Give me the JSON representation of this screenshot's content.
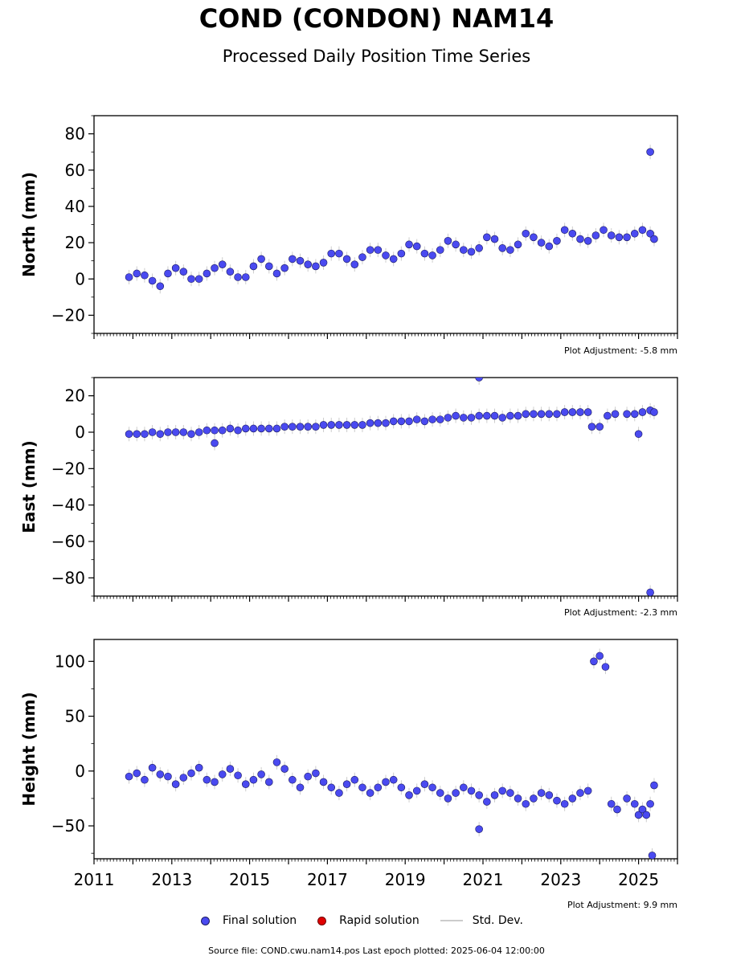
{
  "title": "COND (CONDON) NAM14",
  "subtitle": "Processed Daily Position Time Series",
  "legend": {
    "final": "Final solution",
    "rapid": "Rapid solution",
    "std": "Std. Dev."
  },
  "footer": "Source file: COND.cwu.nam14.pos  Last epoch plotted: 2025-06-04 12:00:00",
  "colors": {
    "final": "#4a4af0",
    "rapid": "#e00000",
    "std": "#cccccc"
  },
  "chart_data": [
    {
      "type": "scatter",
      "ylabel": "North (mm)",
      "adjustment": "Plot Adjustment: -5.8 mm",
      "xlim": [
        2011,
        2026
      ],
      "ylim": [
        -30,
        90
      ],
      "yticks": [
        {
          "v": -20,
          "label": "−20"
        },
        {
          "v": 0,
          "label": "0"
        },
        {
          "v": 20,
          "label": "20"
        },
        {
          "v": 40,
          "label": "40"
        },
        {
          "v": 60,
          "label": "60"
        },
        {
          "v": 80,
          "label": "80"
        }
      ],
      "series": [
        {
          "values": [
            [
              2011.9,
              1
            ],
            [
              2012.1,
              3
            ],
            [
              2012.3,
              2
            ],
            [
              2012.5,
              -1
            ],
            [
              2012.7,
              -4
            ],
            [
              2012.9,
              3
            ],
            [
              2013.1,
              6
            ],
            [
              2013.3,
              4
            ],
            [
              2013.5,
              0
            ],
            [
              2013.7,
              0
            ],
            [
              2013.9,
              3
            ],
            [
              2014.1,
              6
            ],
            [
              2014.3,
              8
            ],
            [
              2014.5,
              4
            ],
            [
              2014.7,
              1
            ],
            [
              2014.9,
              1
            ],
            [
              2015.1,
              7
            ],
            [
              2015.3,
              11
            ],
            [
              2015.5,
              7
            ],
            [
              2015.7,
              3
            ],
            [
              2015.9,
              6
            ],
            [
              2016.1,
              11
            ],
            [
              2016.3,
              10
            ],
            [
              2016.5,
              8
            ],
            [
              2016.7,
              7
            ],
            [
              2016.9,
              9
            ],
            [
              2017.1,
              14
            ],
            [
              2017.3,
              14
            ],
            [
              2017.5,
              11
            ],
            [
              2017.7,
              8
            ],
            [
              2017.9,
              12
            ],
            [
              2018.1,
              16
            ],
            [
              2018.3,
              16
            ],
            [
              2018.5,
              13
            ],
            [
              2018.7,
              11
            ],
            [
              2018.9,
              14
            ],
            [
              2019.1,
              19
            ],
            [
              2019.3,
              18
            ],
            [
              2019.5,
              14
            ],
            [
              2019.7,
              13
            ],
            [
              2019.9,
              16
            ],
            [
              2020.1,
              21
            ],
            [
              2020.3,
              19
            ],
            [
              2020.5,
              16
            ],
            [
              2020.7,
              15
            ],
            [
              2020.9,
              17
            ],
            [
              2021.1,
              23
            ],
            [
              2021.3,
              22
            ],
            [
              2021.5,
              17
            ],
            [
              2021.7,
              16
            ],
            [
              2021.9,
              19
            ],
            [
              2022.1,
              25
            ],
            [
              2022.3,
              23
            ],
            [
              2022.5,
              20
            ],
            [
              2022.7,
              18
            ],
            [
              2022.9,
              21
            ],
            [
              2023.1,
              27
            ],
            [
              2023.3,
              25
            ],
            [
              2023.5,
              22
            ],
            [
              2023.7,
              21
            ],
            [
              2023.9,
              24
            ],
            [
              2024.1,
              27
            ],
            [
              2024.3,
              24
            ],
            [
              2024.5,
              23
            ],
            [
              2024.7,
              23
            ],
            [
              2024.9,
              25
            ],
            [
              2025.1,
              27
            ],
            [
              2025.3,
              25
            ],
            [
              2025.4,
              22
            ],
            [
              2025.3,
              70
            ]
          ]
        }
      ]
    },
    {
      "type": "scatter",
      "ylabel": "East (mm)",
      "adjustment": "Plot Adjustment: -2.3 mm",
      "xlim": [
        2011,
        2026
      ],
      "ylim": [
        -90,
        30
      ],
      "yticks": [
        {
          "v": -80,
          "label": "−80"
        },
        {
          "v": -60,
          "label": "−60"
        },
        {
          "v": -40,
          "label": "−40"
        },
        {
          "v": -20,
          "label": "−20"
        },
        {
          "v": 0,
          "label": "0"
        },
        {
          "v": 20,
          "label": "20"
        }
      ],
      "series": [
        {
          "values": [
            [
              2011.9,
              -1
            ],
            [
              2012.1,
              -1
            ],
            [
              2012.3,
              -1
            ],
            [
              2012.5,
              0
            ],
            [
              2012.7,
              -1
            ],
            [
              2012.9,
              0
            ],
            [
              2013.1,
              0
            ],
            [
              2013.3,
              0
            ],
            [
              2013.5,
              -1
            ],
            [
              2013.7,
              0
            ],
            [
              2013.9,
              1
            ],
            [
              2014.1,
              -6
            ],
            [
              2014.1,
              1
            ],
            [
              2014.3,
              1
            ],
            [
              2014.5,
              2
            ],
            [
              2014.7,
              1
            ],
            [
              2014.9,
              2
            ],
            [
              2015.1,
              2
            ],
            [
              2015.3,
              2
            ],
            [
              2015.5,
              2
            ],
            [
              2015.7,
              2
            ],
            [
              2015.9,
              3
            ],
            [
              2016.1,
              3
            ],
            [
              2016.3,
              3
            ],
            [
              2016.5,
              3
            ],
            [
              2016.7,
              3
            ],
            [
              2016.9,
              4
            ],
            [
              2017.1,
              4
            ],
            [
              2017.3,
              4
            ],
            [
              2017.5,
              4
            ],
            [
              2017.7,
              4
            ],
            [
              2017.9,
              4
            ],
            [
              2018.1,
              5
            ],
            [
              2018.3,
              5
            ],
            [
              2018.5,
              5
            ],
            [
              2018.7,
              6
            ],
            [
              2018.9,
              6
            ],
            [
              2019.1,
              6
            ],
            [
              2019.3,
              7
            ],
            [
              2019.5,
              6
            ],
            [
              2019.7,
              7
            ],
            [
              2019.9,
              7
            ],
            [
              2020.1,
              8
            ],
            [
              2020.3,
              9
            ],
            [
              2020.5,
              8
            ],
            [
              2020.7,
              8
            ],
            [
              2020.9,
              9
            ],
            [
              2020.9,
              30
            ],
            [
              2021.1,
              9
            ],
            [
              2021.3,
              9
            ],
            [
              2021.5,
              8
            ],
            [
              2021.7,
              9
            ],
            [
              2021.9,
              9
            ],
            [
              2022.1,
              10
            ],
            [
              2022.3,
              10
            ],
            [
              2022.5,
              10
            ],
            [
              2022.7,
              10
            ],
            [
              2022.9,
              10
            ],
            [
              2023.1,
              11
            ],
            [
              2023.3,
              11
            ],
            [
              2023.5,
              11
            ],
            [
              2023.7,
              11
            ],
            [
              2023.8,
              3
            ],
            [
              2024.0,
              3
            ],
            [
              2024.2,
              9
            ],
            [
              2024.4,
              10
            ],
            [
              2024.7,
              10
            ],
            [
              2024.9,
              10
            ],
            [
              2025.0,
              -1
            ],
            [
              2025.1,
              11
            ],
            [
              2025.3,
              12
            ],
            [
              2025.4,
              11
            ],
            [
              2025.3,
              -88
            ]
          ]
        }
      ]
    },
    {
      "type": "scatter",
      "ylabel": "Height (mm)",
      "adjustment": "Plot Adjustment: 9.9 mm",
      "xlim": [
        2011,
        2026
      ],
      "ylim": [
        -80,
        120
      ],
      "xticks": [
        {
          "v": 2011,
          "label": "2011"
        },
        {
          "v": 2013,
          "label": "2013"
        },
        {
          "v": 2015,
          "label": "2015"
        },
        {
          "v": 2017,
          "label": "2017"
        },
        {
          "v": 2019,
          "label": "2019"
        },
        {
          "v": 2021,
          "label": "2021"
        },
        {
          "v": 2023,
          "label": "2023"
        },
        {
          "v": 2025,
          "label": "2025"
        }
      ],
      "yticks": [
        {
          "v": -50,
          "label": "−50"
        },
        {
          "v": 0,
          "label": "0"
        },
        {
          "v": 50,
          "label": "50"
        },
        {
          "v": 100,
          "label": "100"
        }
      ],
      "series": [
        {
          "values": [
            [
              2011.9,
              -5
            ],
            [
              2012.1,
              -2
            ],
            [
              2012.3,
              -8
            ],
            [
              2012.5,
              3
            ],
            [
              2012.7,
              -3
            ],
            [
              2012.9,
              -5
            ],
            [
              2013.1,
              -12
            ],
            [
              2013.3,
              -6
            ],
            [
              2013.5,
              -2
            ],
            [
              2013.7,
              3
            ],
            [
              2013.9,
              -8
            ],
            [
              2014.1,
              -10
            ],
            [
              2014.3,
              -3
            ],
            [
              2014.5,
              2
            ],
            [
              2014.7,
              -4
            ],
            [
              2014.9,
              -12
            ],
            [
              2015.1,
              -8
            ],
            [
              2015.3,
              -3
            ],
            [
              2015.5,
              -10
            ],
            [
              2015.7,
              8
            ],
            [
              2015.9,
              2
            ],
            [
              2016.1,
              -8
            ],
            [
              2016.3,
              -15
            ],
            [
              2016.5,
              -5
            ],
            [
              2016.7,
              -2
            ],
            [
              2016.9,
              -10
            ],
            [
              2017.1,
              -15
            ],
            [
              2017.3,
              -20
            ],
            [
              2017.5,
              -12
            ],
            [
              2017.7,
              -8
            ],
            [
              2017.9,
              -15
            ],
            [
              2018.1,
              -20
            ],
            [
              2018.3,
              -15
            ],
            [
              2018.5,
              -10
            ],
            [
              2018.7,
              -8
            ],
            [
              2018.9,
              -15
            ],
            [
              2019.1,
              -22
            ],
            [
              2019.3,
              -18
            ],
            [
              2019.5,
              -12
            ],
            [
              2019.7,
              -15
            ],
            [
              2019.9,
              -20
            ],
            [
              2020.1,
              -25
            ],
            [
              2020.3,
              -20
            ],
            [
              2020.5,
              -15
            ],
            [
              2020.7,
              -18
            ],
            [
              2020.9,
              -22
            ],
            [
              2020.9,
              -53
            ],
            [
              2021.1,
              -28
            ],
            [
              2021.3,
              -22
            ],
            [
              2021.5,
              -18
            ],
            [
              2021.7,
              -20
            ],
            [
              2021.9,
              -25
            ],
            [
              2022.1,
              -30
            ],
            [
              2022.3,
              -25
            ],
            [
              2022.5,
              -20
            ],
            [
              2022.7,
              -22
            ],
            [
              2022.9,
              -27
            ],
            [
              2023.1,
              -30
            ],
            [
              2023.3,
              -25
            ],
            [
              2023.5,
              -20
            ],
            [
              2023.7,
              -18
            ],
            [
              2023.85,
              100
            ],
            [
              2024.0,
              105
            ],
            [
              2024.15,
              95
            ],
            [
              2024.3,
              -30
            ],
            [
              2024.45,
              -35
            ],
            [
              2024.7,
              -25
            ],
            [
              2024.9,
              -30
            ],
            [
              2025.0,
              -40
            ],
            [
              2025.1,
              -35
            ],
            [
              2025.2,
              -40
            ],
            [
              2025.3,
              -30
            ],
            [
              2025.35,
              -77
            ],
            [
              2025.4,
              -13
            ]
          ]
        }
      ]
    }
  ]
}
